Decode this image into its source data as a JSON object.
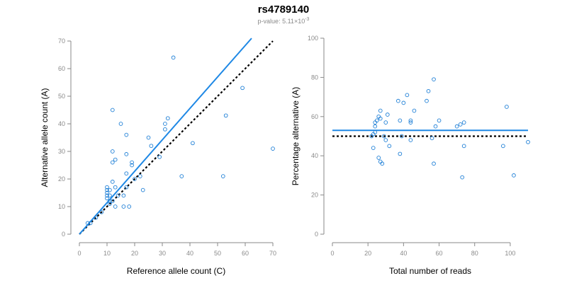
{
  "title": "rs4789140",
  "pvalue": {
    "prefix": "p-value: ",
    "mantissa": "5.11",
    "times": "×10",
    "exponent": "-3"
  },
  "colors": {
    "points": "#1e7fd6",
    "fit": "#1e88e5",
    "reference": "#000000",
    "axis": "#8a8a8a"
  },
  "chart_data": [
    {
      "type": "scatter",
      "xlabel": "Reference allele count (C)",
      "ylabel": "Alternative allele count (A)",
      "xlim": [
        0,
        70
      ],
      "ylim": [
        0,
        70
      ],
      "xticks": [
        0,
        10,
        20,
        30,
        40,
        50,
        60,
        70
      ],
      "yticks": [
        0,
        10,
        20,
        30,
        40,
        50,
        60,
        70
      ],
      "grid": false,
      "points": [
        [
          3,
          4
        ],
        [
          4,
          4
        ],
        [
          6,
          6
        ],
        [
          8,
          8
        ],
        [
          10,
          13
        ],
        [
          10,
          14
        ],
        [
          10,
          15
        ],
        [
          10,
          16
        ],
        [
          10,
          17
        ],
        [
          11,
          11
        ],
        [
          11,
          12
        ],
        [
          11,
          14
        ],
        [
          11,
          16
        ],
        [
          12,
          12
        ],
        [
          12,
          19
        ],
        [
          12,
          26
        ],
        [
          12,
          30
        ],
        [
          12,
          45
        ],
        [
          13,
          10
        ],
        [
          13,
          17
        ],
        [
          13,
          27
        ],
        [
          14,
          14
        ],
        [
          15,
          40
        ],
        [
          16,
          10
        ],
        [
          16,
          14
        ],
        [
          17,
          17
        ],
        [
          17,
          22
        ],
        [
          17,
          29
        ],
        [
          17,
          36
        ],
        [
          18,
          10
        ],
        [
          19,
          25
        ],
        [
          19,
          26
        ],
        [
          20,
          20
        ],
        [
          22,
          21
        ],
        [
          23,
          16
        ],
        [
          25,
          35
        ],
        [
          26,
          32
        ],
        [
          29,
          28
        ],
        [
          31,
          38
        ],
        [
          31,
          40
        ],
        [
          32,
          42
        ],
        [
          34,
          64
        ],
        [
          37,
          21
        ],
        [
          41,
          33
        ],
        [
          52,
          21
        ],
        [
          53,
          43
        ],
        [
          59,
          53
        ],
        [
          70,
          31
        ]
      ],
      "fit_line": [
        [
          0,
          0
        ],
        [
          62.3,
          71
        ]
      ],
      "reference_line": [
        [
          0,
          0
        ],
        [
          70,
          70
        ]
      ]
    },
    {
      "type": "scatter",
      "xlabel": "Total number of reads",
      "ylabel": "Percentage alternative (A)",
      "xlim": [
        0,
        110
      ],
      "ylim": [
        0,
        100
      ],
      "xticks": [
        0,
        20,
        40,
        60,
        80,
        100
      ],
      "yticks": [
        0,
        20,
        40,
        60,
        80,
        100
      ],
      "grid": false,
      "points": [
        [
          22,
          50
        ],
        [
          23,
          44
        ],
        [
          23,
          51
        ],
        [
          24,
          52
        ],
        [
          24,
          55
        ],
        [
          24,
          57
        ],
        [
          25,
          58
        ],
        [
          26,
          60
        ],
        [
          26,
          39
        ],
        [
          27,
          37
        ],
        [
          27,
          59
        ],
        [
          27,
          63
        ],
        [
          28,
          36
        ],
        [
          29,
          50
        ],
        [
          30,
          48
        ],
        [
          30,
          57
        ],
        [
          31,
          61
        ],
        [
          32,
          45
        ],
        [
          37,
          68
        ],
        [
          38,
          41
        ],
        [
          38,
          58
        ],
        [
          39,
          50
        ],
        [
          40,
          67
        ],
        [
          42,
          71
        ],
        [
          44,
          57
        ],
        [
          44,
          58
        ],
        [
          44,
          48
        ],
        [
          46,
          63
        ],
        [
          53,
          68
        ],
        [
          54,
          73
        ],
        [
          56,
          49
        ],
        [
          57,
          79
        ],
        [
          57,
          36
        ],
        [
          58,
          55
        ],
        [
          60,
          58
        ],
        [
          70,
          55
        ],
        [
          72,
          56
        ],
        [
          73,
          29
        ],
        [
          74,
          57
        ],
        [
          74,
          45
        ],
        [
          96,
          45
        ],
        [
          98,
          65
        ],
        [
          102,
          30
        ],
        [
          110,
          47
        ]
      ],
      "fit_line": [
        [
          0,
          53
        ],
        [
          110,
          53
        ]
      ],
      "reference_line": [
        [
          0,
          50
        ],
        [
          110,
          50
        ]
      ]
    }
  ]
}
